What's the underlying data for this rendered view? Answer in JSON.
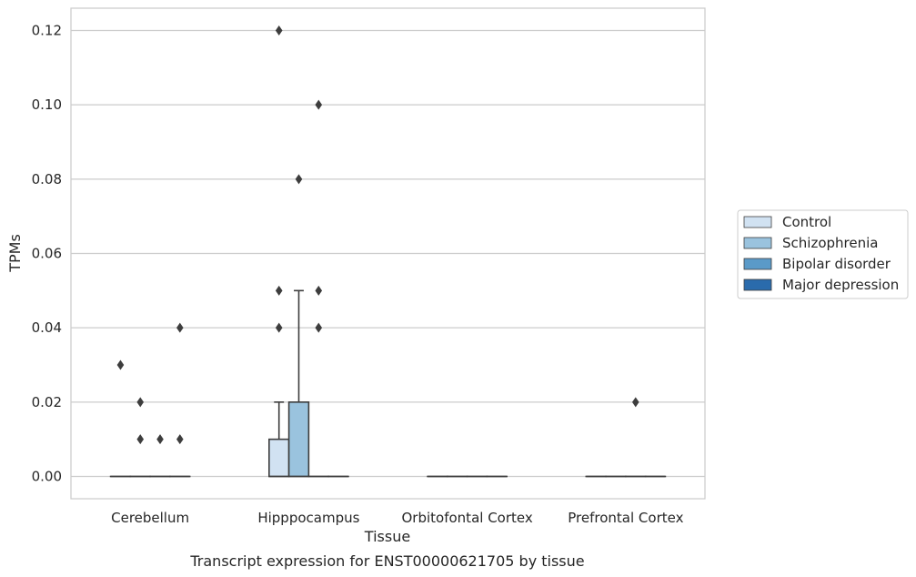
{
  "chart_data": {
    "type": "box",
    "xlabel": "Tissue",
    "ylabel": "TPMs",
    "caption": "Transcript expression for ENST00000621705 by tissue",
    "categories": [
      "Cerebellum",
      "Hipppocampus",
      "Orbitofontal Cortex",
      "Prefrontal Cortex"
    ],
    "ylim": [
      -0.006,
      0.126
    ],
    "yticks": [
      "0.00",
      "0.02",
      "0.04",
      "0.06",
      "0.08",
      "0.10",
      "0.12"
    ],
    "ytick_values": [
      0,
      0.02,
      0.04,
      0.06,
      0.08,
      0.1,
      0.12
    ],
    "grid": "horizontal",
    "legend_position": "right",
    "series": [
      {
        "name": "Control",
        "color": "#d1e2f2",
        "boxes": [
          {
            "q1": 0,
            "median": 0,
            "q3": 0,
            "whisker_low": 0,
            "whisker_high": 0,
            "outliers": [
              0.03
            ]
          },
          {
            "q1": 0,
            "median": 0,
            "q3": 0.01,
            "whisker_low": 0,
            "whisker_high": 0.02,
            "outliers": [
              0.04,
              0.05,
              0.12
            ]
          },
          {
            "q1": 0,
            "median": 0,
            "q3": 0,
            "whisker_low": 0,
            "whisker_high": 0,
            "outliers": []
          },
          {
            "q1": 0,
            "median": 0,
            "q3": 0,
            "whisker_low": 0,
            "whisker_high": 0,
            "outliers": []
          }
        ]
      },
      {
        "name": "Schizophrenia",
        "color": "#9ac3de",
        "boxes": [
          {
            "q1": 0,
            "median": 0,
            "q3": 0,
            "whisker_low": 0,
            "whisker_high": 0,
            "outliers": [
              0.01,
              0.02
            ]
          },
          {
            "q1": 0,
            "median": 0,
            "q3": 0.02,
            "whisker_low": 0,
            "whisker_high": 0.05,
            "outliers": [
              0.08
            ]
          },
          {
            "q1": 0,
            "median": 0,
            "q3": 0,
            "whisker_low": 0,
            "whisker_high": 0,
            "outliers": []
          },
          {
            "q1": 0,
            "median": 0,
            "q3": 0,
            "whisker_low": 0,
            "whisker_high": 0,
            "outliers": []
          }
        ]
      },
      {
        "name": "Bipolar disorder",
        "color": "#5a9ac8",
        "boxes": [
          {
            "q1": 0,
            "median": 0,
            "q3": 0,
            "whisker_low": 0,
            "whisker_high": 0,
            "outliers": [
              0.01
            ]
          },
          {
            "q1": 0,
            "median": 0,
            "q3": 0,
            "whisker_low": 0,
            "whisker_high": 0,
            "outliers": [
              0.04,
              0.05,
              0.1
            ]
          },
          {
            "q1": 0,
            "median": 0,
            "q3": 0,
            "whisker_low": 0,
            "whisker_high": 0,
            "outliers": []
          },
          {
            "q1": 0,
            "median": 0,
            "q3": 0,
            "whisker_low": 0,
            "whisker_high": 0,
            "outliers": [
              0.02
            ]
          }
        ]
      },
      {
        "name": "Major depression",
        "color": "#2a6bac",
        "boxes": [
          {
            "q1": 0,
            "median": 0,
            "q3": 0,
            "whisker_low": 0,
            "whisker_high": 0,
            "outliers": [
              0.01,
              0.04
            ]
          },
          {
            "q1": 0,
            "median": 0,
            "q3": 0,
            "whisker_low": 0,
            "whisker_high": 0,
            "outliers": []
          },
          {
            "q1": 0,
            "median": 0,
            "q3": 0,
            "whisker_low": 0,
            "whisker_high": 0,
            "outliers": []
          },
          {
            "q1": 0,
            "median": 0,
            "q3": 0,
            "whisker_low": 0,
            "whisker_high": 0,
            "outliers": []
          }
        ]
      }
    ]
  }
}
